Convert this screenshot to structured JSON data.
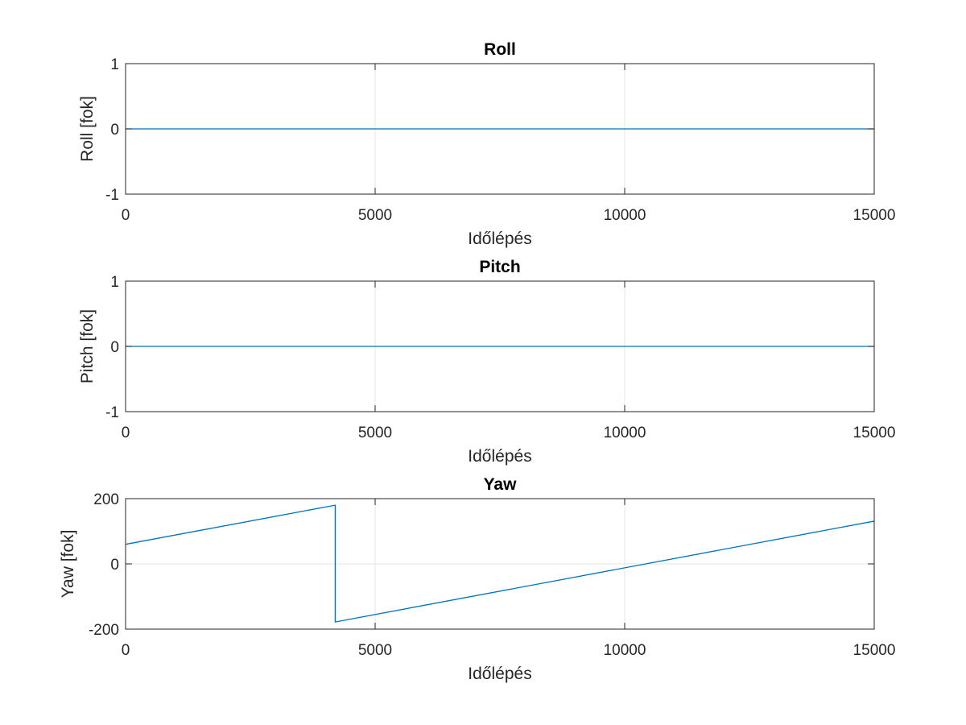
{
  "chart_data": [
    {
      "type": "line",
      "title": "Roll",
      "xlabel": "Időlépés",
      "ylabel": "Roll [fok]",
      "xlim": [
        0,
        15000
      ],
      "ylim": [
        -1,
        1
      ],
      "xticks": [
        0,
        5000,
        10000,
        15000
      ],
      "yticks": [
        -1,
        0,
        1
      ],
      "grid": true,
      "color": "#0072BD",
      "series": [
        {
          "x": [
            0,
            15000
          ],
          "y": [
            0,
            0
          ]
        }
      ]
    },
    {
      "type": "line",
      "title": "Pitch",
      "xlabel": "Időlépés",
      "ylabel": "Pitch [fok]",
      "xlim": [
        0,
        15000
      ],
      "ylim": [
        -1,
        1
      ],
      "xticks": [
        0,
        5000,
        10000,
        15000
      ],
      "yticks": [
        -1,
        0,
        1
      ],
      "grid": true,
      "color": "#0072BD",
      "series": [
        {
          "x": [
            0,
            15000
          ],
          "y": [
            0,
            0
          ]
        }
      ]
    },
    {
      "type": "line",
      "title": "Yaw",
      "xlabel": "Időlépés",
      "ylabel": "Yaw [fok]",
      "xlim": [
        0,
        15000
      ],
      "ylim": [
        -200,
        200
      ],
      "xticks": [
        0,
        5000,
        10000,
        15000
      ],
      "yticks": [
        -200,
        0,
        200
      ],
      "grid": true,
      "color": "#0072BD",
      "series": [
        {
          "x": [
            0,
            4200,
            4200,
            15000
          ],
          "y": [
            60,
            180,
            -178,
            131
          ]
        }
      ]
    }
  ]
}
